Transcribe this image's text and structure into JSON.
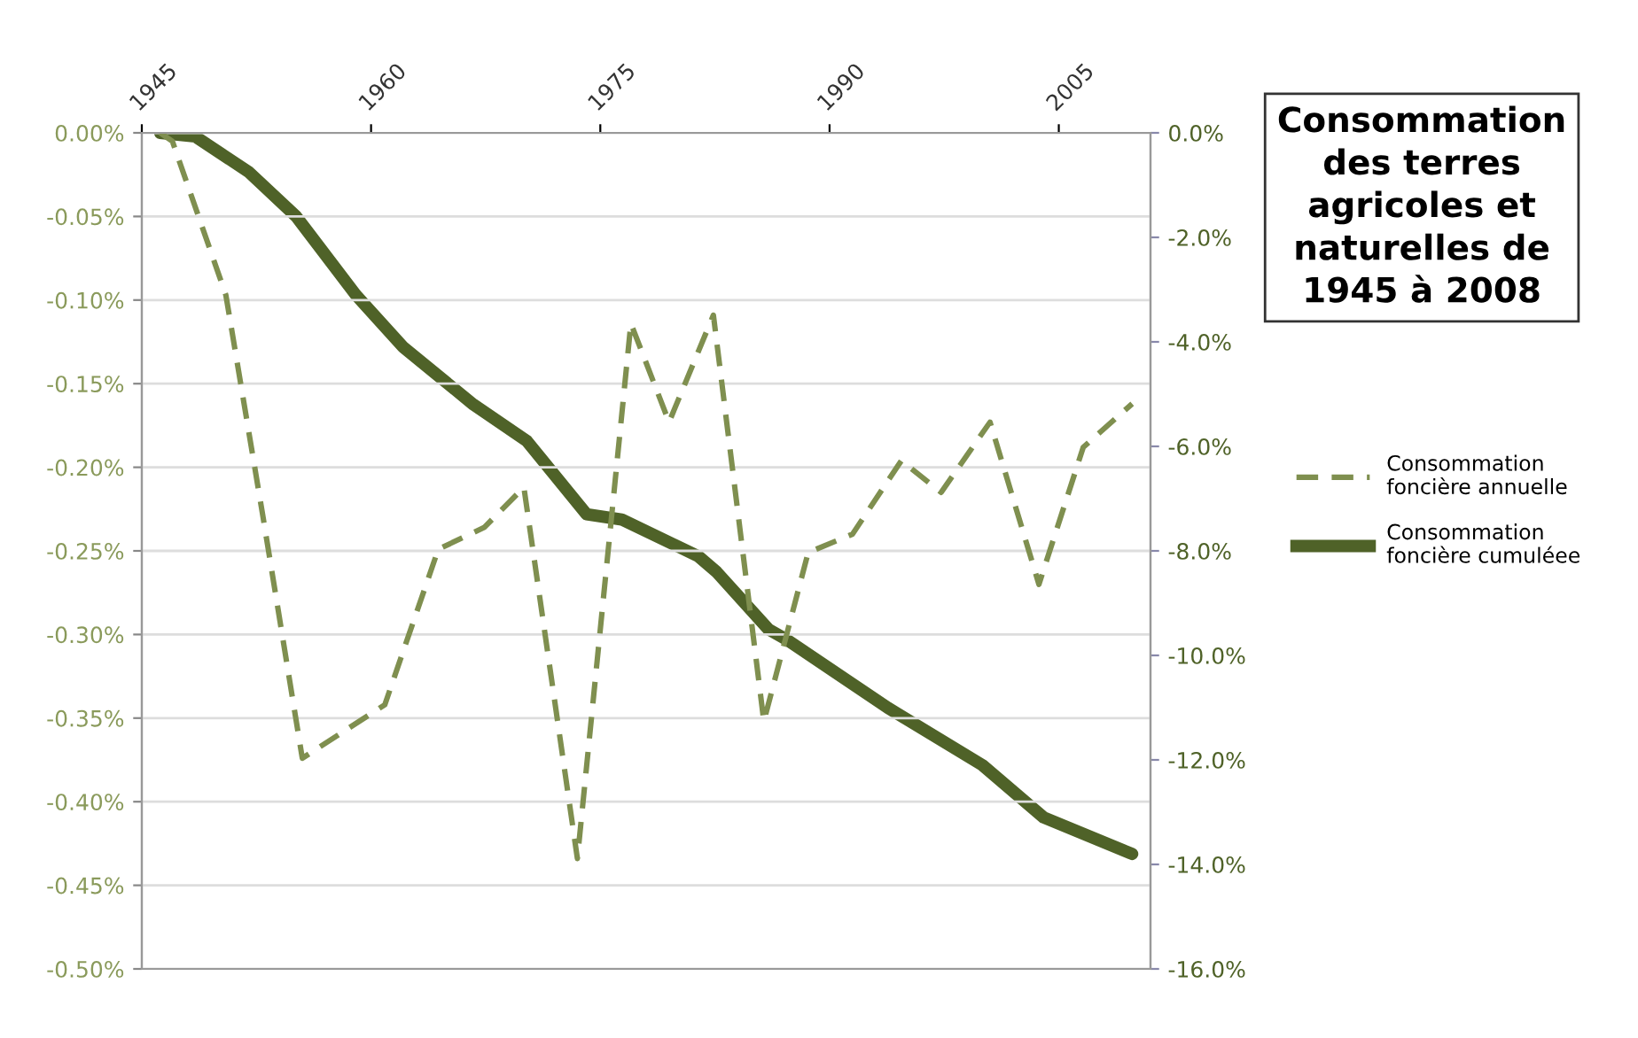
{
  "chart_data": {
    "type": "line",
    "title": "Consommation des terres agricoles et naturelles de 1945 à 2008",
    "xlim": [
      1945,
      2011
    ],
    "xticks": [
      1945,
      1960,
      1975,
      1990,
      2005
    ],
    "ylim": [
      -0.5,
      0
    ],
    "yticks": [
      {
        "value": 0,
        "label": "0.00%"
      },
      {
        "value": -0.05,
        "label": "-0.05%"
      },
      {
        "value": -0.1,
        "label": "-0.10%"
      },
      {
        "value": -0.15,
        "label": "-0.15%"
      },
      {
        "value": -0.2,
        "label": "-0.20%"
      },
      {
        "value": -0.25,
        "label": "-0.25%"
      },
      {
        "value": -0.3,
        "label": "-0.30%"
      },
      {
        "value": -0.35,
        "label": "-0.35%"
      },
      {
        "value": -0.4,
        "label": "-0.40%"
      },
      {
        "value": -0.45,
        "label": "-0.45%"
      },
      {
        "value": -0.5,
        "label": "-0.50%"
      }
    ],
    "y2lim": [
      -16,
      0
    ],
    "y2ticks": [
      {
        "value": 0,
        "label": "0.0%"
      },
      {
        "value": -2,
        "label": "-2.0%"
      },
      {
        "value": -4,
        "label": "-4.0%"
      },
      {
        "value": -6,
        "label": "-6.0%"
      },
      {
        "value": -8,
        "label": "-8.0%"
      },
      {
        "value": -10,
        "label": "-10.0%"
      },
      {
        "value": -12,
        "label": "-12.0%"
      },
      {
        "value": -14,
        "label": "-14.0%"
      },
      {
        "value": -16,
        "label": "-16.0%"
      }
    ],
    "grid": "y",
    "legend": "right",
    "series": [
      {
        "name": "Consommation foncière annuelle",
        "color": "#7f8f4f",
        "line_style": "dashed",
        "x": [
          1946.2,
          1947.0,
          1950.5,
          1952.9,
          1955.5,
          1960.9,
          1964.4,
          1967.4,
          1970.0,
          1973.5,
          1977.0,
          1979.5,
          1982.4,
          1985.7,
          1988.6,
          1991.5,
          1994.7,
          1997.3,
          2000.5,
          2003.7,
          2006.6,
          2009.8
        ],
        "values": [
          0,
          -0.005,
          -0.097,
          -0.228,
          -0.374,
          -0.342,
          -0.249,
          -0.236,
          -0.212,
          -0.434,
          -0.114,
          -0.173,
          -0.109,
          -0.352,
          -0.251,
          -0.24,
          -0.196,
          -0.215,
          -0.173,
          -0.27,
          -0.188,
          -0.162
        ]
      },
      {
        "name": "Consommation foncière cumuléee",
        "color": "#4f6228",
        "line_style": "solid",
        "axis": "y2",
        "x": [
          1946.2,
          1948.5,
          1952.0,
          1955.1,
          1959.0,
          1962.1,
          1966.7,
          1970.2,
          1974.1,
          1976.4,
          1981.4,
          1982.6,
          1986.0,
          1987.2,
          1993.8,
          2000.0,
          2004.0,
          2009.8
        ],
        "values": [
          0,
          -0.07,
          -0.75,
          -1.6,
          -3.1,
          -4.1,
          -5.2,
          -5.9,
          -7.3,
          -7.4,
          -8.1,
          -8.4,
          -9.5,
          -9.7,
          -11.0,
          -12.1,
          -13.1,
          -13.8
        ]
      }
    ]
  }
}
